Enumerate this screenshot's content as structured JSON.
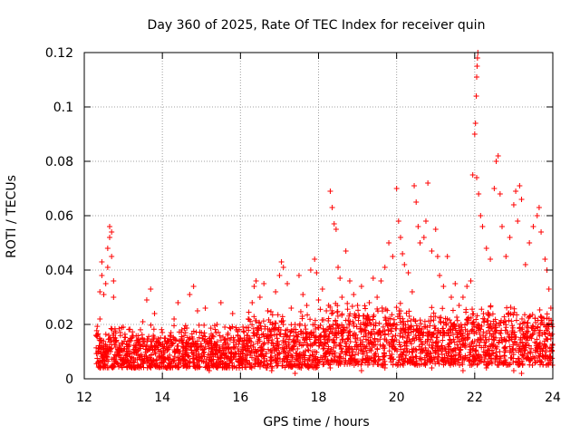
{
  "chart_data": {
    "type": "scatter",
    "title": "Day 360 of 2025, Rate Of TEC Index for receiver quin",
    "xlabel": "GPS time / hours",
    "ylabel": "ROTI / TECUs",
    "xlim": [
      12,
      24
    ],
    "ylim": [
      0,
      0.12
    ],
    "xticks": [
      12,
      14,
      16,
      18,
      20,
      22,
      24
    ],
    "yticks": [
      0,
      0.02,
      0.04,
      0.06,
      0.08,
      0.1,
      0.12
    ],
    "ytick_labels": [
      "0",
      "0.02",
      "0.04",
      "0.06",
      "0.08",
      "0.1",
      "0.12"
    ],
    "grid": true,
    "marker": "+",
    "color": "#ff0000",
    "series": [
      {
        "name": "ROTI",
        "points": [
          [
            12.3,
            0.016
          ],
          [
            12.35,
            0.01
          ],
          [
            12.4,
            0.022
          ],
          [
            12.4,
            0.032
          ],
          [
            12.45,
            0.038
          ],
          [
            12.45,
            0.043
          ],
          [
            12.5,
            0.031
          ],
          [
            12.55,
            0.035
          ],
          [
            12.6,
            0.041
          ],
          [
            12.6,
            0.048
          ],
          [
            12.65,
            0.052
          ],
          [
            12.65,
            0.056
          ],
          [
            12.7,
            0.054
          ],
          [
            12.7,
            0.045
          ],
          [
            12.75,
            0.036
          ],
          [
            12.75,
            0.03
          ],
          [
            12.5,
            0.012
          ],
          [
            12.6,
            0.008
          ],
          [
            12.8,
            0.015
          ],
          [
            12.9,
            0.01
          ],
          [
            13.0,
            0.019
          ],
          [
            13.1,
            0.007
          ],
          [
            13.2,
            0.014
          ],
          [
            13.3,
            0.011
          ],
          [
            13.5,
            0.021
          ],
          [
            13.6,
            0.029
          ],
          [
            13.7,
            0.033
          ],
          [
            13.8,
            0.024
          ],
          [
            13.9,
            0.013
          ],
          [
            14.0,
            0.006
          ],
          [
            14.2,
            0.016
          ],
          [
            14.3,
            0.022
          ],
          [
            14.4,
            0.028
          ],
          [
            14.5,
            0.018
          ],
          [
            14.6,
            0.009
          ],
          [
            14.7,
            0.031
          ],
          [
            14.8,
            0.034
          ],
          [
            14.9,
            0.025
          ],
          [
            15.0,
            0.017
          ],
          [
            15.1,
            0.026
          ],
          [
            15.3,
            0.012
          ],
          [
            15.4,
            0.02
          ],
          [
            15.5,
            0.028
          ],
          [
            15.6,
            0.019
          ],
          [
            15.7,
            0.011
          ],
          [
            15.8,
            0.024
          ],
          [
            15.9,
            0.018
          ],
          [
            16.0,
            0.008
          ],
          [
            16.1,
            0.015
          ],
          [
            16.2,
            0.022
          ],
          [
            16.3,
            0.028
          ],
          [
            16.35,
            0.034
          ],
          [
            16.4,
            0.036
          ],
          [
            16.5,
            0.03
          ],
          [
            16.6,
            0.035
          ],
          [
            16.7,
            0.025
          ],
          [
            16.8,
            0.018
          ],
          [
            16.9,
            0.032
          ],
          [
            17.0,
            0.038
          ],
          [
            17.05,
            0.043
          ],
          [
            17.1,
            0.041
          ],
          [
            17.2,
            0.035
          ],
          [
            17.3,
            0.026
          ],
          [
            17.4,
            0.02
          ],
          [
            17.5,
            0.038
          ],
          [
            17.6,
            0.031
          ],
          [
            17.7,
            0.027
          ],
          [
            17.8,
            0.04
          ],
          [
            17.9,
            0.044
          ],
          [
            17.95,
            0.039
          ],
          [
            18.0,
            0.029
          ],
          [
            18.1,
            0.033
          ],
          [
            18.2,
            0.025
          ],
          [
            18.3,
            0.069
          ],
          [
            18.35,
            0.063
          ],
          [
            18.4,
            0.057
          ],
          [
            18.45,
            0.055
          ],
          [
            18.5,
            0.041
          ],
          [
            18.55,
            0.037
          ],
          [
            18.6,
            0.03
          ],
          [
            18.7,
            0.047
          ],
          [
            18.8,
            0.036
          ],
          [
            18.9,
            0.031
          ],
          [
            19.0,
            0.027
          ],
          [
            19.1,
            0.034
          ],
          [
            19.2,
            0.022
          ],
          [
            19.3,
            0.028
          ],
          [
            19.4,
            0.037
          ],
          [
            19.5,
            0.03
          ],
          [
            19.6,
            0.036
          ],
          [
            19.7,
            0.041
          ],
          [
            19.8,
            0.05
          ],
          [
            19.9,
            0.045
          ],
          [
            20.0,
            0.07
          ],
          [
            20.05,
            0.058
          ],
          [
            20.1,
            0.052
          ],
          [
            20.15,
            0.046
          ],
          [
            20.2,
            0.042
          ],
          [
            20.3,
            0.039
          ],
          [
            20.4,
            0.032
          ],
          [
            20.45,
            0.071
          ],
          [
            20.5,
            0.065
          ],
          [
            20.55,
            0.056
          ],
          [
            20.6,
            0.05
          ],
          [
            20.7,
            0.052
          ],
          [
            20.75,
            0.058
          ],
          [
            20.8,
            0.072
          ],
          [
            20.9,
            0.047
          ],
          [
            21.0,
            0.055
          ],
          [
            21.05,
            0.045
          ],
          [
            21.1,
            0.038
          ],
          [
            21.2,
            0.034
          ],
          [
            21.3,
            0.045
          ],
          [
            21.4,
            0.03
          ],
          [
            21.5,
            0.035
          ],
          [
            21.6,
            0.027
          ],
          [
            21.7,
            0.03
          ],
          [
            21.8,
            0.034
          ],
          [
            21.9,
            0.036
          ],
          [
            21.95,
            0.075
          ],
          [
            22.0,
            0.09
          ],
          [
            22.02,
            0.094
          ],
          [
            22.04,
            0.104
          ],
          [
            22.05,
            0.111
          ],
          [
            22.06,
            0.115
          ],
          [
            22.07,
            0.118
          ],
          [
            22.08,
            0.12
          ],
          [
            22.05,
            0.074
          ],
          [
            22.1,
            0.068
          ],
          [
            22.15,
            0.06
          ],
          [
            22.2,
            0.056
          ],
          [
            22.3,
            0.048
          ],
          [
            22.4,
            0.044
          ],
          [
            22.5,
            0.07
          ],
          [
            22.55,
            0.08
          ],
          [
            22.6,
            0.082
          ],
          [
            22.65,
            0.068
          ],
          [
            22.7,
            0.056
          ],
          [
            22.8,
            0.045
          ],
          [
            22.9,
            0.052
          ],
          [
            23.0,
            0.064
          ],
          [
            23.05,
            0.069
          ],
          [
            23.1,
            0.058
          ],
          [
            23.15,
            0.071
          ],
          [
            23.2,
            0.066
          ],
          [
            23.3,
            0.042
          ],
          [
            23.4,
            0.05
          ],
          [
            23.5,
            0.056
          ],
          [
            23.6,
            0.06
          ],
          [
            23.65,
            0.063
          ],
          [
            23.7,
            0.054
          ],
          [
            23.8,
            0.044
          ],
          [
            23.85,
            0.04
          ],
          [
            23.9,
            0.033
          ],
          [
            23.95,
            0.026
          ],
          [
            23.0,
            0.003
          ],
          [
            23.2,
            0.002
          ],
          [
            21.7,
            0.003
          ],
          [
            17.4,
            0.002
          ],
          [
            14.1,
            0.004
          ],
          [
            12.4,
            0.004
          ],
          [
            13.3,
            0.004
          ],
          [
            15.9,
            0.004
          ],
          [
            18.3,
            0.004
          ],
          [
            19.7,
            0.004
          ],
          [
            20.9,
            0.004
          ],
          [
            22.3,
            0.004
          ],
          [
            16.8,
            0.003
          ],
          [
            19.1,
            0.003
          ],
          [
            15.2,
            0.003
          ]
        ],
        "band": {
          "description": "dense baseline band of ROTI samples",
          "segments": [
            {
              "from": 12.3,
              "to": 16.2,
              "low": 0.004,
              "high": 0.021
            },
            {
              "from": 16.2,
              "to": 18.0,
              "low": 0.004,
              "high": 0.026
            },
            {
              "from": 18.0,
              "to": 20.4,
              "low": 0.005,
              "high": 0.03
            },
            {
              "from": 20.4,
              "to": 21.8,
              "low": 0.005,
              "high": 0.027
            },
            {
              "from": 21.8,
              "to": 24.0,
              "low": 0.005,
              "high": 0.028
            }
          ]
        }
      }
    ]
  }
}
